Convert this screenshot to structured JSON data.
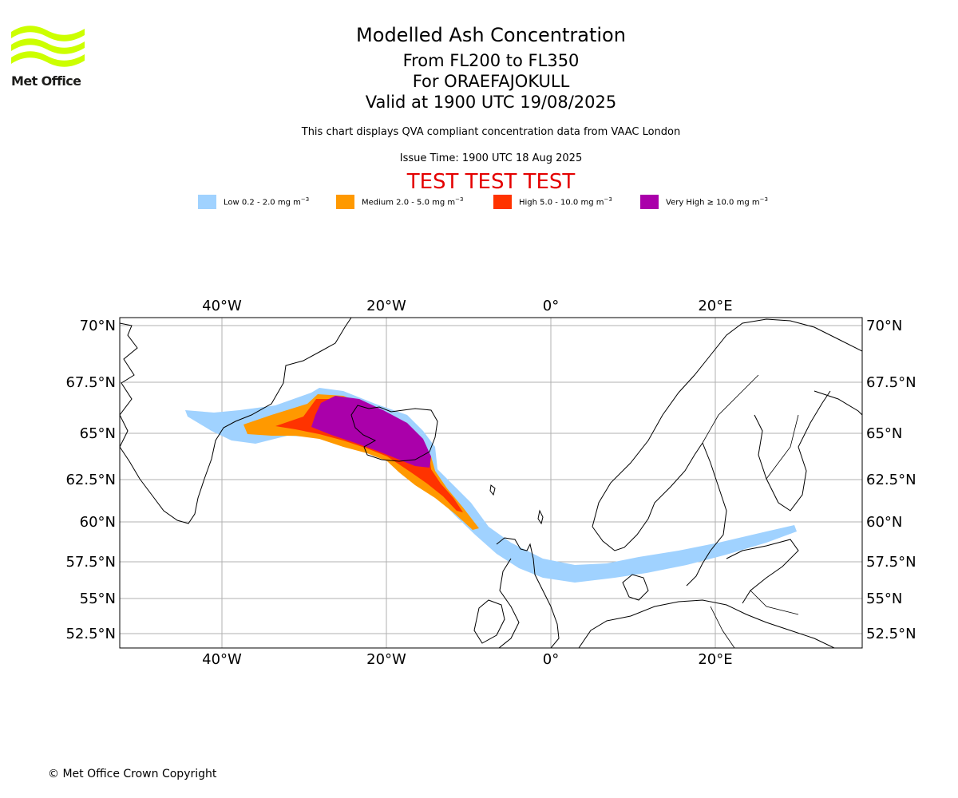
{
  "logo": {
    "text": "Met Office",
    "color": "#ccff00"
  },
  "title": {
    "main": "Modelled Ash Concentration",
    "levels": "From FL200 to FL350",
    "volcano": "For ORAEFAJOKULL",
    "valid": "Valid at 1900 UTC 19/08/2025"
  },
  "subtitle": "This chart displays QVA compliant concentration data from VAAC London",
  "issue_time": "Issue Time: 1900 UTC 18 Aug 2025",
  "test_banner": "TEST TEST TEST",
  "legend": [
    {
      "label": "Low 0.2 - 2.0 mg m",
      "color": "#a0d2ff"
    },
    {
      "label": "Medium 2.0 - 5.0 mg m",
      "color": "#ff9900"
    },
    {
      "label": "High 5.0 - 10.0 mg m",
      "color": "#ff3300"
    },
    {
      "label": "Very High ≥ 10.0 mg m",
      "color": "#aa00aa"
    }
  ],
  "legend_unit_exp": "−3",
  "map": {
    "lon_labels": [
      "40°W",
      "20°W",
      "0°",
      "20°E"
    ],
    "lat_labels": [
      "70°N",
      "67.5°N",
      "65°N",
      "62.5°N",
      "60°N",
      "57.5°N",
      "55°N",
      "52.5°N"
    ],
    "gridline_color": "#b0b0b0",
    "coastline_color": "#000000"
  },
  "copyright": "© Met Office Crown Copyright"
}
